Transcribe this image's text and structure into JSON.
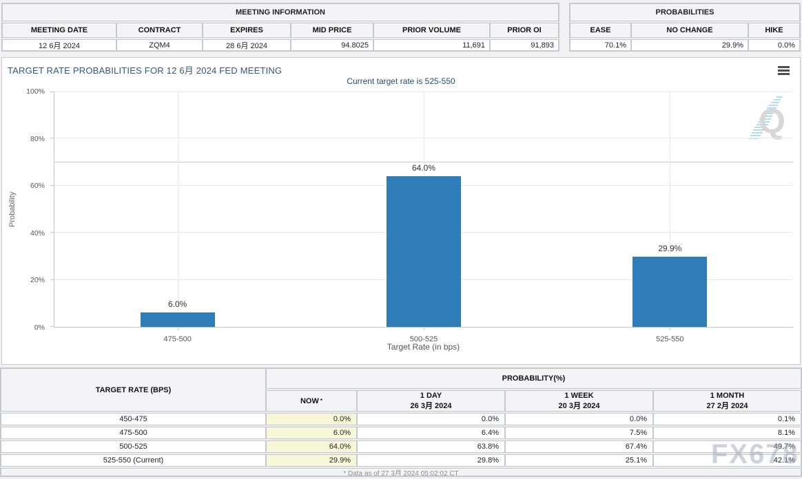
{
  "meeting_information": {
    "title": "MEETING INFORMATION",
    "columns": [
      "MEETING DATE",
      "CONTRACT",
      "EXPIRES",
      "MID PRICE",
      "PRIOR VOLUME",
      "PRIOR OI"
    ],
    "values": [
      "12 6月 2024",
      "ZQM4",
      "28 6月 2024",
      "94.8025",
      "11,691",
      "91,893"
    ]
  },
  "probabilities_summary": {
    "title": "PROBABILITIES",
    "columns": [
      "EASE",
      "NO CHANGE",
      "HIKE"
    ],
    "values": [
      "70.1%",
      "29.9%",
      "0.0%"
    ]
  },
  "chart_data": {
    "type": "bar",
    "title": "TARGET RATE PROBABILITIES FOR 12 6月 2024 FED MEETING",
    "subtitle": "Current target rate is 525-550",
    "categories": [
      "475-500",
      "500-525",
      "525-550"
    ],
    "values": [
      6.0,
      64.0,
      29.9
    ],
    "value_labels": [
      "6.0%",
      "64.0%",
      "29.9%"
    ],
    "xlabel": "Target Rate (in bps)",
    "ylabel": "Probability",
    "ylim": [
      0,
      100
    ],
    "ytick_step": 20,
    "ytick_suffix": "%",
    "plotline_y": 70,
    "grid": true,
    "legend": "none",
    "bar_color": "#2e7cb8"
  },
  "probability_table": {
    "col1_header": "TARGET RATE (BPS)",
    "group_header": "PROBABILITY(%)",
    "columns": [
      {
        "label": "NOW",
        "sup": "*",
        "date": ""
      },
      {
        "label": "1 DAY",
        "date": "26 3月 2024"
      },
      {
        "label": "1 WEEK",
        "date": "20 3月 2024"
      },
      {
        "label": "1 MONTH",
        "date": "27 2月 2024"
      }
    ],
    "rows": [
      {
        "rate": "450-475",
        "now": "0.0%",
        "day1": "0.0%",
        "week1": "0.0%",
        "month1": "0.1%"
      },
      {
        "rate": "475-500",
        "now": "6.0%",
        "day1": "6.4%",
        "week1": "7.5%",
        "month1": "8.1%"
      },
      {
        "rate": "500-525",
        "now": "64.0%",
        "day1": "63.8%",
        "week1": "67.4%",
        "month1": "49.7%"
      },
      {
        "rate": "525-550 (Current)",
        "now": "29.9%",
        "day1": "29.8%",
        "week1": "25.1%",
        "month1": "42.1%"
      }
    ],
    "footnote": "* Data as of 27 3月 2024 05:02:02 CT"
  },
  "watermarks": {
    "fx": "FX678",
    "q_letter": "Q"
  },
  "colors": {
    "bar": "#2e7cb8",
    "now_highlight": "#f8f8d8",
    "title_blue": "#33567e"
  }
}
